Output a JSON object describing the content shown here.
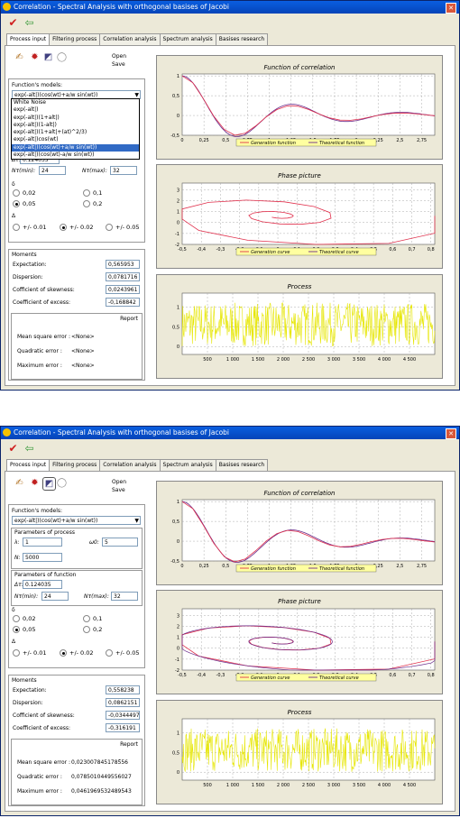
{
  "window": {
    "title": "Correlation - Spectral Analysis with orthogonal basises of Jacobi"
  },
  "tabs": [
    "Process input",
    "Filtering process",
    "Correlation analysis",
    "Spectrum analysis",
    "Basises research"
  ],
  "open_label": "Open",
  "save_label": "Save",
  "functions_models_label": "Function's models:",
  "model_selected_top": "exp(-alt|)(cos(wt)+a/w sin(wt))",
  "model_options": [
    "White Noise",
    "exp(-alt|)",
    "exp(-alt|)(1+alt|)",
    "exp(-alt|)(1-alt|)",
    "exp(-alt|)(1+alt|+(at)^2/3)",
    "exp(-alt|)cos(wt)",
    "exp(-alt|)(cos(wt)+a/w sin(wt))",
    "exp(-alt|)(cos(wt)-a/w sin(wt))"
  ],
  "model_selected_bottom": "exp(-alt|)(cos(wt)+a/w sin(wt))",
  "params_process": {
    "title": "Parameters of process",
    "lambda_label": "λ:",
    "lambda_value": "1",
    "w0_label": "ω0:",
    "w0_value": "5",
    "n_label": "N:",
    "n_value": "5000"
  },
  "params_function": {
    "title": "Parameters of function",
    "dt_label": "Δτ:",
    "dt_value": "0.124035",
    "nrmin_label": "Nτ(min):",
    "nrmin_value": "24",
    "nrmax_label": "Nτ(max):",
    "nrmax_value": "32"
  },
  "delta_label": "δ",
  "delta_options": [
    "0,02",
    "0,1",
    "0,05",
    "0,2"
  ],
  "Delta_label": "Δ",
  "Delta_options": [
    "+/- 0.01",
    "+/- 0.02",
    "+/- 0.05"
  ],
  "moments_title": "Moments",
  "moment_labels": [
    "Expectation:",
    "Dispersion:",
    "Cofficient of skewness:",
    "Coefficient of excess:"
  ],
  "moments_top": [
    "0,565953",
    "0,0781716",
    "0,0243961",
    "-0,168842"
  ],
  "moments_bottom": [
    "0,558238",
    "0,0862151",
    "-0,0344497",
    "-0,316191"
  ],
  "report_title": "Report",
  "report_labels": [
    "Mean square error :",
    "Quadratic error :",
    "Maximum error :"
  ],
  "report_top": [
    "<None>",
    "<None>",
    "<None>"
  ],
  "report_bottom": [
    "0,0230078451785̃56",
    "0,0785010449556027",
    "0,0461969532489543"
  ],
  "charts": {
    "corr_title": "Function of correlation",
    "corr_legend": [
      "Generation function",
      "Theoretical function"
    ],
    "phase_title": "Phase picture",
    "phase_legend": [
      "Generation curve",
      "Theoretical curve"
    ],
    "process_title": "Process"
  },
  "colors": {
    "generation": "#e0304c",
    "theoretical": "#6a2a8a",
    "process": "#e6e600",
    "legend_bg": "#ffffa0"
  },
  "chart_data": [
    {
      "type": "line",
      "title": "Function of correlation",
      "x_ticks": [
        "0",
        "0,25",
        "0,5",
        "0,75",
        "1",
        "1,25",
        "1,5",
        "1,75",
        "2",
        "2,25",
        "2,5",
        "2,75"
      ],
      "y_ticks": [
        "1",
        "0,5",
        "0",
        "-0,5"
      ],
      "xlim": [
        0,
        2.9
      ],
      "ylim": [
        -0.5,
        1.05
      ],
      "series": [
        {
          "name": "Generation function"
        },
        {
          "name": "Theoretical function"
        }
      ]
    },
    {
      "type": "line",
      "title": "Phase picture",
      "x_ticks": [
        "-0,5",
        "-0,4",
        "-0,3",
        "-0,2",
        "-0,1",
        "0",
        "0,1",
        "0,2",
        "0,3",
        "0,4",
        "0,5",
        "0,6",
        "0,7",
        "0,8"
      ],
      "y_ticks": [
        "3",
        "2",
        "1",
        "0",
        "-1",
        "-2"
      ],
      "xlim": [
        -0.5,
        0.82
      ],
      "ylim": [
        -2,
        3.6
      ],
      "series": [
        {
          "name": "Generation curve"
        },
        {
          "name": "Theoretical curve"
        }
      ]
    },
    {
      "type": "line",
      "title": "Process",
      "x_ticks": [
        "500",
        "1 000",
        "1 500",
        "2 000",
        "2 500",
        "3 000",
        "3 500",
        "4 000",
        "4 500"
      ],
      "y_ticks": [
        "1",
        "0,5",
        "0"
      ],
      "xlim": [
        0,
        5000
      ],
      "ylim": [
        -0.2,
        1.35
      ],
      "series": [
        {
          "name": ""
        }
      ]
    }
  ]
}
